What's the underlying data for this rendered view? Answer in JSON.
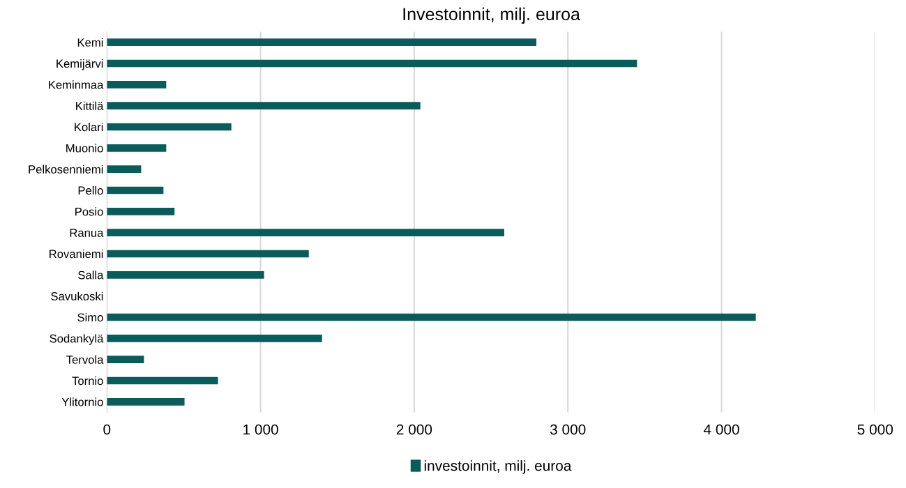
{
  "chart_data": {
    "type": "bar",
    "orientation": "horizontal",
    "title": "Investoinnit, milj. euroa",
    "categories": [
      "Kemi",
      "Kemijärvi",
      "Keminmaa",
      "Kittilä",
      "Kolari",
      "Muonio",
      "Pelkosenniemi",
      "Pello",
      "Posio",
      "Ranua",
      "Rovaniemi",
      "Salla",
      "Savukoski",
      "Simo",
      "Sodankylä",
      "Tervola",
      "Tornio",
      "Ylitornio"
    ],
    "series": [
      {
        "name": "investoinnit, milj. euroa",
        "color": "#0b5b5b",
        "values": [
          2795,
          3450,
          386,
          2040,
          810,
          386,
          223,
          368,
          440,
          2586,
          1314,
          1023,
          0,
          4223,
          1400,
          241,
          723,
          505
        ]
      }
    ],
    "xlim": [
      0,
      5000
    ],
    "xticks": [
      0,
      {
        "value": 1000,
        "label": "1 000"
      },
      {
        "value": 2000,
        "label": "2 000"
      },
      {
        "value": 3000,
        "label": "3 000"
      },
      {
        "value": 4000,
        "label": "4 000"
      },
      {
        "value": 5000,
        "label": "5 000"
      }
    ],
    "grid": "x",
    "legend": "bottom"
  }
}
